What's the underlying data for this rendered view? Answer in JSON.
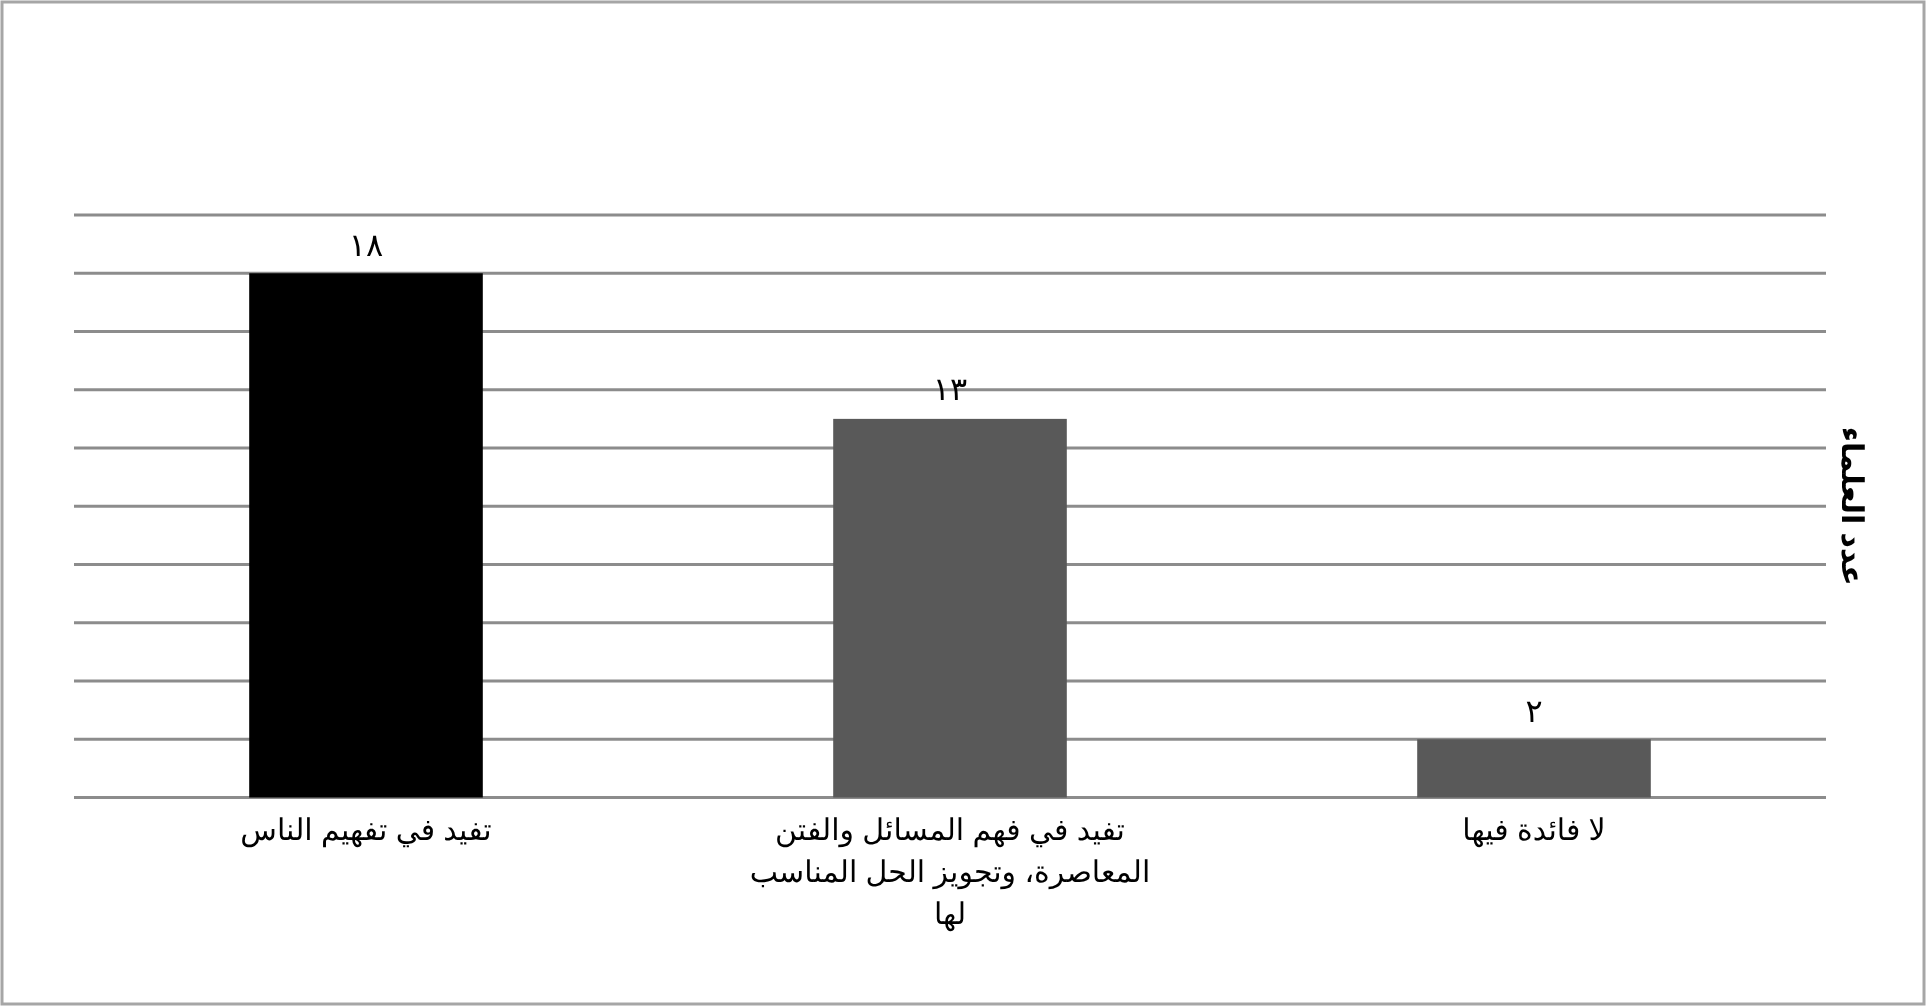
{
  "chart_data": {
    "type": "bar",
    "categories": [
      "تفيد في تفهيم الناس",
      "تفيد في فهم المسائل والفتن المعاصرة، وتجويز الحل المناسب لها",
      "لا فائدة فيها"
    ],
    "values": [
      18,
      13,
      2
    ],
    "value_labels": [
      "١٨",
      "١٣",
      "٢"
    ],
    "colors": [
      "#000000",
      "#595959",
      "#595959"
    ],
    "ylabel": "عدد العلماء",
    "ylim": [
      0,
      20
    ],
    "yticks": [
      {
        "value": 0,
        "label": null
      },
      {
        "value": 2,
        "label": null
      },
      {
        "value": 4,
        "label": null
      },
      {
        "value": 6,
        "label": null
      },
      {
        "value": 8,
        "label": null
      },
      {
        "value": 10,
        "label": null
      },
      {
        "value": 12,
        "label": null
      },
      {
        "value": 14,
        "label": null
      },
      {
        "value": 16,
        "label": null
      },
      {
        "value": 18,
        "label": null
      },
      {
        "value": 20,
        "label": null
      }
    ],
    "tick_labels": "x",
    "grid": "y"
  }
}
